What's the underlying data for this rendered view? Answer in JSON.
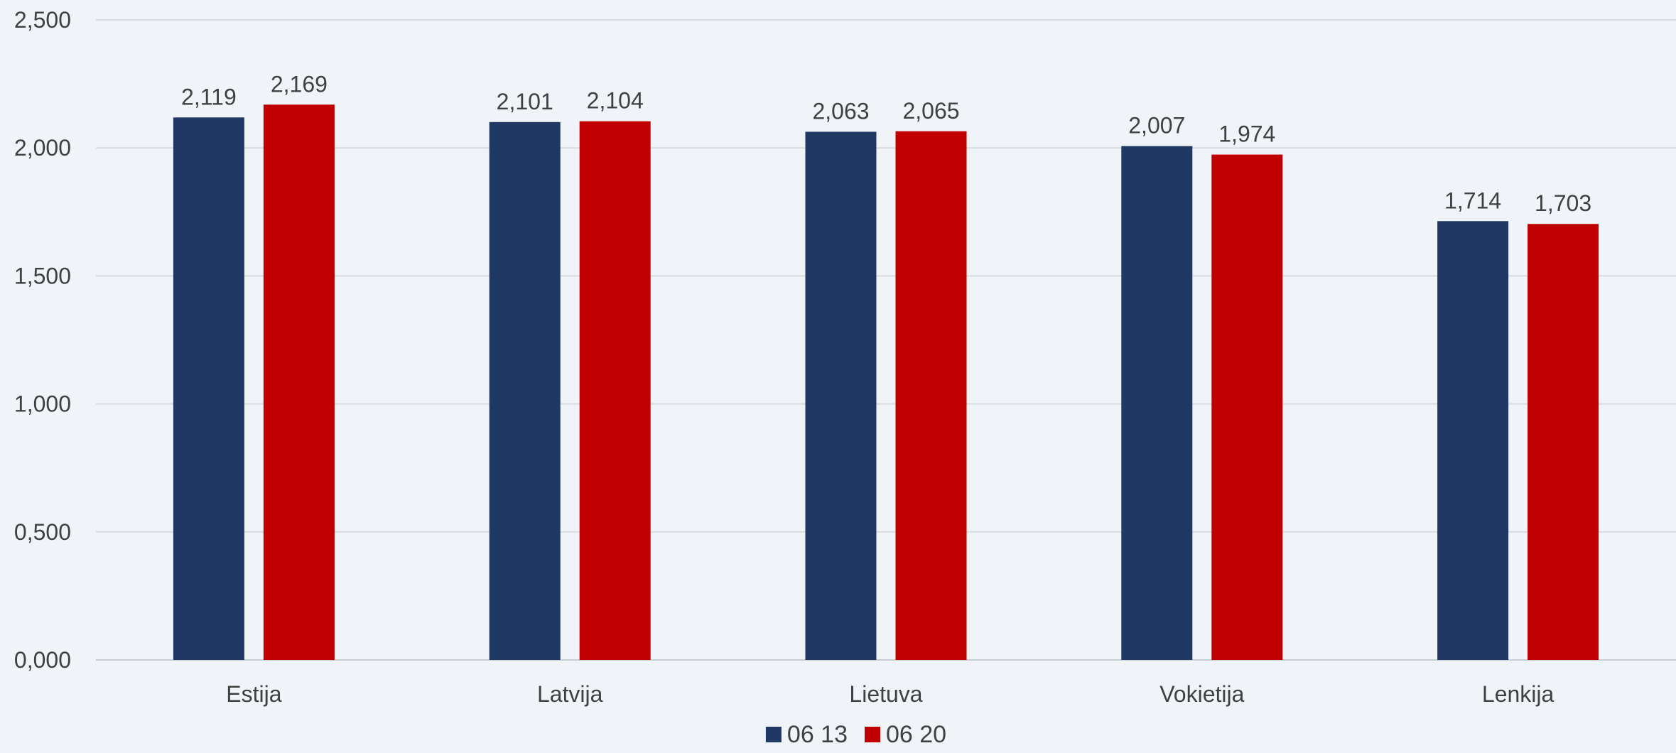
{
  "chart_data": {
    "type": "bar",
    "title": "",
    "xlabel": "",
    "ylabel": "",
    "categories": [
      "Estija",
      "Latvija",
      "Lietuva",
      "Vokietija",
      "Lenkija"
    ],
    "series": [
      {
        "name": "06 13",
        "color": "#1f3864",
        "values": [
          2.119,
          2.101,
          2.063,
          2.007,
          1.714
        ],
        "labels": [
          "2,119",
          "2,101",
          "2,063",
          "2,007",
          "1,714"
        ]
      },
      {
        "name": "06 20",
        "color": "#c00000",
        "values": [
          2.169,
          2.104,
          2.065,
          1.974,
          1.703
        ],
        "labels": [
          "2,169",
          "2,104",
          "2,065",
          "1,974",
          "1,703"
        ]
      }
    ],
    "ylim": [
      0,
      2.5
    ],
    "yticks": [
      0,
      0.5,
      1.0,
      1.5,
      2.0,
      2.5
    ],
    "ytick_labels": [
      "0,000",
      "0,500",
      "1,000",
      "1,500",
      "2,000",
      "2,500"
    ],
    "grid": true,
    "legend_position": "bottom"
  }
}
